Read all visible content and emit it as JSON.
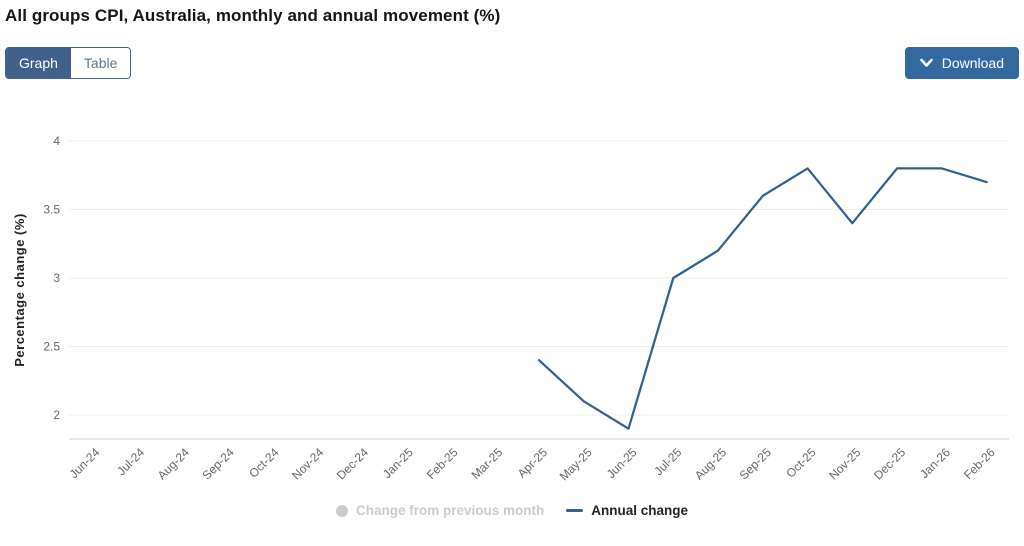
{
  "header": {
    "title": "All groups CPI, Australia, monthly and annual movement (%)"
  },
  "toolbar": {
    "graph_tab": "Graph",
    "table_tab": "Table",
    "download_label": "Download",
    "download_icon": "chevron-down"
  },
  "colors": {
    "accent_blue": "#33699f",
    "toggle_selected_bg": "#40618a",
    "toggle_unselected_text": "#5b7693",
    "annual_line": "#33608f",
    "disabled_gray": "#cccccc",
    "tick_text": "#666666",
    "axis_title_text": "#222222",
    "grid_line": "#ececec",
    "axis_line": "#cfcfcf"
  },
  "chart_data": {
    "type": "line",
    "title": "All groups CPI, Australia, monthly and annual movement (%)",
    "xlabel": "",
    "ylabel": "Percentage change (%)",
    "ylim": [
      1.8,
      4.2
    ],
    "y_ticks": [
      2,
      2.5,
      3,
      3.5,
      4
    ],
    "grid": true,
    "legend_position": "bottom",
    "x_label_rotation": -45,
    "categories": [
      "Jun-24",
      "Jul-24",
      "Aug-24",
      "Sep-24",
      "Oct-24",
      "Nov-24",
      "Dec-24",
      "Jan-25",
      "Feb-25",
      "Mar-25",
      "Apr-25",
      "May-25",
      "Jun-25",
      "Jul-25",
      "Aug-25",
      "Sep-25",
      "Oct-25",
      "Nov-25",
      "Dec-25",
      "Jan-26",
      "Feb-26"
    ],
    "series": [
      {
        "name": "Change from previous month",
        "type": "line",
        "visible": false,
        "color": "#cccccc",
        "values": []
      },
      {
        "name": "Annual change",
        "type": "line",
        "visible": true,
        "color": "#33608f",
        "values": [
          null,
          null,
          null,
          null,
          null,
          null,
          null,
          null,
          null,
          null,
          2.4,
          2.1,
          1.9,
          3.0,
          3.2,
          3.6,
          3.8,
          3.4,
          3.8,
          3.8,
          3.7
        ]
      }
    ]
  }
}
